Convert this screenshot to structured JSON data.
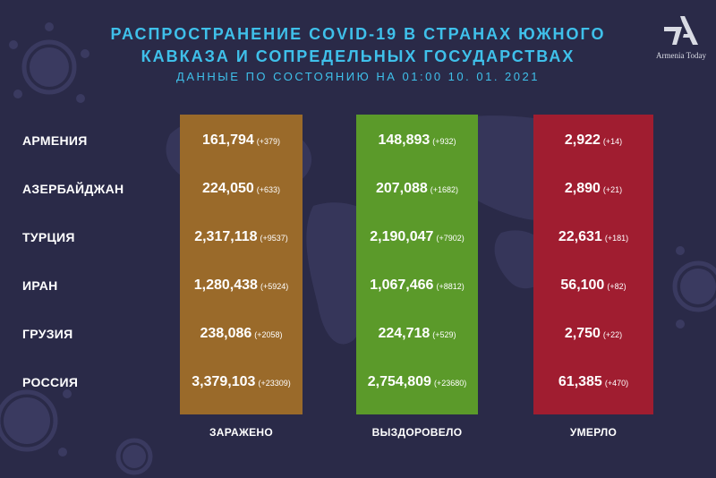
{
  "header": {
    "title_line1": "РАСПРОСТРАНЕНИЕ COVID-19 В СТРАНАХ ЮЖНОГО",
    "title_line2": "КАВКАЗА И СОПРЕДЕЛЬНЫХ ГОСУДАРСТВАХ",
    "subtitle": "ДАННЫЕ ПО СОСТОЯНИЮ НА 01:00   10. 01. 2021"
  },
  "logo": {
    "name": "Armenia Today"
  },
  "columns": {
    "infected": "ЗАРАЖЕНО",
    "recovered": "ВЫЗДОРОВЕЛО",
    "deaths": "УМЕРЛО"
  },
  "colors": {
    "background": "#2a2a48",
    "title": "#3fc0ea",
    "infected": "#9a6a2a",
    "recovered": "#5b9a2a",
    "deaths": "#a01d30"
  },
  "rows": [
    {
      "country": "АРМЕНИЯ",
      "infected": "161,794",
      "infected_delta": "(+379)",
      "recovered": "148,893",
      "recovered_delta": "(+932)",
      "deaths": "2,922",
      "deaths_delta": "(+14)"
    },
    {
      "country": "АЗЕРБАЙДЖАН",
      "infected": "224,050",
      "infected_delta": "(+633)",
      "recovered": "207,088",
      "recovered_delta": "(+1682)",
      "deaths": "2,890",
      "deaths_delta": "(+21)"
    },
    {
      "country": "ТУРЦИЯ",
      "infected": "2,317,118",
      "infected_delta": "(+9537)",
      "recovered": "2,190,047",
      "recovered_delta": "(+7902)",
      "deaths": "22,631",
      "deaths_delta": "(+181)"
    },
    {
      "country": "ИРАН",
      "infected": "1,280,438",
      "infected_delta": "(+5924)",
      "recovered": "1,067,466",
      "recovered_delta": "(+8812)",
      "deaths": "56,100",
      "deaths_delta": "(+82)"
    },
    {
      "country": "ГРУЗИЯ",
      "infected": "238,086",
      "infected_delta": "(+2058)",
      "recovered": "224,718",
      "recovered_delta": "(+529)",
      "deaths": "2,750",
      "deaths_delta": "(+22)"
    },
    {
      "country": "РОССИЯ",
      "infected": "3,379,103",
      "infected_delta": "(+23309)",
      "recovered": "2,754,809",
      "recovered_delta": "(+23680)",
      "deaths": "61,385",
      "deaths_delta": "(+470)"
    }
  ]
}
